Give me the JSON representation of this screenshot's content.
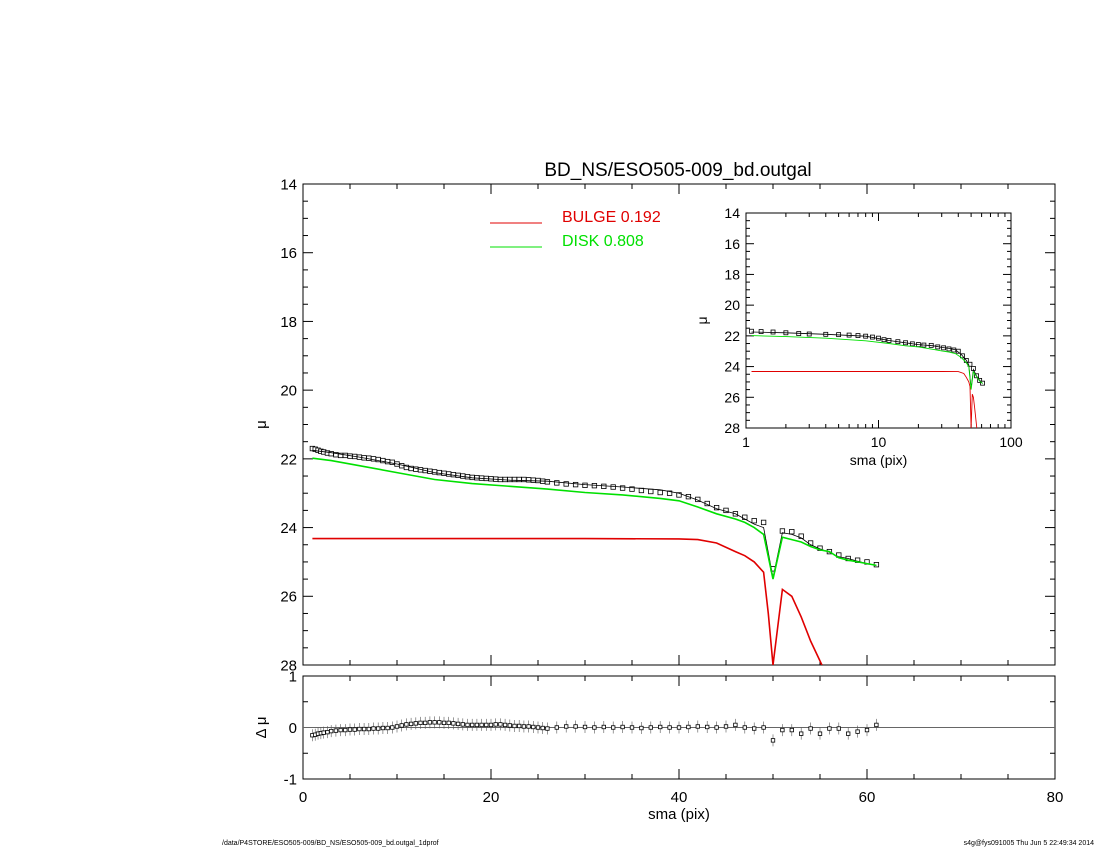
{
  "chart_data": [
    {
      "type": "line",
      "panel": "main",
      "title": "BD_NS/ESO505-009_bd.outgal",
      "xlabel": "",
      "ylabel": "μ",
      "xlim": [
        0,
        80
      ],
      "ylim": [
        28,
        14
      ],
      "y_inverted": true,
      "xticks": [
        0,
        20,
        40,
        60,
        80
      ],
      "yticks": [
        14,
        16,
        18,
        20,
        22,
        24,
        26,
        28
      ],
      "legend": [
        {
          "name": "BULGE",
          "value": "0.192",
          "color": "#e00000"
        },
        {
          "name": "DISK",
          "value": "0.808",
          "color": "#00e000"
        }
      ],
      "series": [
        {
          "name": "data",
          "style": "squares",
          "color": "#000000",
          "x": [
            1.0,
            1.3,
            1.6,
            1.9,
            2.2,
            2.6,
            3,
            3.5,
            4,
            4.5,
            5,
            5.5,
            6,
            6.5,
            7,
            7.5,
            8,
            8.5,
            9,
            9.5,
            10,
            10.5,
            11,
            11.5,
            12,
            12.5,
            13,
            13.5,
            14,
            14.5,
            15,
            15.5,
            16,
            16.5,
            17,
            17.5,
            18,
            18.5,
            19,
            19.5,
            20,
            20.5,
            21,
            21.5,
            22,
            22.5,
            23,
            23.5,
            24,
            24.5,
            25,
            25.5,
            26,
            27,
            28,
            29,
            30,
            31,
            32,
            33,
            34,
            35,
            36,
            37,
            38,
            39,
            40,
            41,
            42,
            43,
            44,
            45,
            46,
            47,
            48,
            49,
            50,
            51,
            52,
            53,
            54,
            55,
            56,
            57,
            58,
            59,
            60,
            61
          ],
          "y": [
            21.7,
            21.72,
            21.75,
            21.78,
            21.8,
            21.83,
            21.85,
            21.88,
            21.9,
            21.9,
            21.92,
            21.93,
            21.95,
            21.97,
            21.98,
            22.0,
            22.02,
            22.05,
            22.08,
            22.1,
            22.15,
            22.2,
            22.25,
            22.28,
            22.3,
            22.32,
            22.34,
            22.36,
            22.38,
            22.4,
            22.42,
            22.44,
            22.46,
            22.48,
            22.5,
            22.52,
            22.54,
            22.55,
            22.56,
            22.57,
            22.58,
            22.59,
            22.6,
            22.6,
            22.6,
            22.6,
            22.6,
            22.6,
            22.61,
            22.62,
            22.63,
            22.65,
            22.67,
            22.7,
            22.73,
            22.75,
            22.77,
            22.78,
            22.8,
            22.82,
            22.85,
            22.88,
            22.92,
            22.95,
            22.98,
            23.0,
            23.05,
            23.1,
            23.18,
            23.3,
            23.42,
            23.5,
            23.6,
            23.7,
            23.8,
            23.85,
            25.2,
            24.1,
            24.12,
            24.25,
            24.45,
            24.6,
            24.7,
            24.8,
            24.9,
            24.95,
            25.0,
            25.08
          ]
        },
        {
          "name": "model",
          "style": "line",
          "color": "#000000",
          "x": [
            1,
            3,
            6,
            10,
            14,
            18,
            22,
            26,
            30,
            34,
            38,
            40,
            42,
            44,
            46,
            47,
            48,
            49,
            50,
            51,
            52,
            53,
            54,
            55,
            56,
            57,
            58,
            59,
            60,
            61
          ],
          "y": [
            21.75,
            21.82,
            21.95,
            22.15,
            22.4,
            22.55,
            22.62,
            22.65,
            22.75,
            22.82,
            22.9,
            23.0,
            23.2,
            23.45,
            23.6,
            23.75,
            23.9,
            24.0,
            25.45,
            24.15,
            24.2,
            24.3,
            24.5,
            24.62,
            24.72,
            24.85,
            24.9,
            24.98,
            25.05,
            25.1
          ]
        },
        {
          "name": "BULGE",
          "style": "line",
          "color": "#e00000",
          "x": [
            1,
            10,
            20,
            30,
            40,
            42,
            44,
            46,
            47,
            48,
            49,
            49.5,
            50,
            50.5,
            51,
            52,
            53,
            54,
            55.2
          ],
          "y": [
            24.32,
            24.32,
            24.32,
            24.32,
            24.33,
            24.35,
            24.45,
            24.7,
            24.82,
            25.0,
            25.3,
            26.5,
            28.0,
            26.9,
            25.8,
            26.0,
            26.6,
            27.3,
            28.0
          ]
        },
        {
          "name": "DISK",
          "style": "line",
          "color": "#00e000",
          "x": [
            1,
            3,
            6,
            10,
            14,
            18,
            22,
            26,
            30,
            34,
            38,
            40,
            42,
            44,
            46,
            47,
            48,
            49,
            50,
            51,
            52,
            53,
            54,
            55,
            56,
            57,
            58,
            59,
            60,
            61
          ],
          "y": [
            21.98,
            22.05,
            22.2,
            22.4,
            22.6,
            22.72,
            22.8,
            22.88,
            22.98,
            23.05,
            23.15,
            23.22,
            23.4,
            23.6,
            23.75,
            23.85,
            24.0,
            24.2,
            25.5,
            24.28,
            24.35,
            24.42,
            24.55,
            24.65,
            24.7,
            24.88,
            24.95,
            25.0,
            25.05,
            25.1
          ]
        }
      ]
    },
    {
      "type": "scatter",
      "panel": "residual",
      "xlabel": "sma (pix)",
      "ylabel": "Δ μ",
      "xlim": [
        0,
        80
      ],
      "ylim": [
        -1,
        1
      ],
      "xticks": [
        0,
        20,
        40,
        60,
        80
      ],
      "yticks": [
        -1,
        0,
        1
      ],
      "zero_line": true,
      "series": [
        {
          "name": "residual",
          "style": "squares",
          "color": "#000000",
          "x": [
            1.0,
            1.3,
            1.6,
            1.9,
            2.2,
            2.6,
            3,
            3.5,
            4,
            4.5,
            5,
            5.5,
            6,
            6.5,
            7,
            7.5,
            8,
            8.5,
            9,
            9.5,
            10,
            10.5,
            11,
            11.5,
            12,
            12.5,
            13,
            13.5,
            14,
            14.5,
            15,
            15.5,
            16,
            16.5,
            17,
            17.5,
            18,
            18.5,
            19,
            19.5,
            20,
            20.5,
            21,
            21.5,
            22,
            22.5,
            23,
            23.5,
            24,
            24.5,
            25,
            25.5,
            26,
            27,
            28,
            29,
            30,
            31,
            32,
            33,
            34,
            35,
            36,
            37,
            38,
            39,
            40,
            41,
            42,
            43,
            44,
            45,
            46,
            47,
            48,
            49,
            50,
            51,
            52,
            53,
            54,
            55,
            56,
            57,
            58,
            59,
            60,
            61
          ],
          "y": [
            -0.15,
            -0.14,
            -0.12,
            -0.11,
            -0.1,
            -0.09,
            -0.07,
            -0.06,
            -0.05,
            -0.05,
            -0.04,
            -0.04,
            -0.03,
            -0.03,
            -0.03,
            -0.02,
            -0.02,
            -0.01,
            -0.01,
            0.0,
            0.02,
            0.04,
            0.06,
            0.07,
            0.08,
            0.09,
            0.09,
            0.1,
            0.1,
            0.1,
            0.09,
            0.09,
            0.08,
            0.07,
            0.06,
            0.05,
            0.05,
            0.05,
            0.05,
            0.05,
            0.05,
            0.06,
            0.06,
            0.05,
            0.04,
            0.03,
            0.03,
            0.02,
            0.02,
            0.01,
            0.0,
            -0.01,
            -0.02,
            0.0,
            0.02,
            0.02,
            0.01,
            0.0,
            0.01,
            0.0,
            0.01,
            0.0,
            -0.01,
            0.0,
            0.01,
            0.0,
            0.0,
            0.01,
            0.02,
            0.01,
            0.0,
            0.02,
            0.05,
            0.0,
            -0.02,
            0.0,
            -0.25,
            -0.05,
            -0.05,
            -0.12,
            -0.02,
            -0.12,
            -0.02,
            -0.02,
            -0.12,
            -0.08,
            -0.05,
            0.05
          ]
        }
      ]
    },
    {
      "type": "line",
      "panel": "inset",
      "xlabel": "sma (pix)",
      "ylabel": "μ",
      "x_scale": "log",
      "xlim": [
        1,
        100
      ],
      "ylim": [
        28,
        14
      ],
      "y_inverted": true,
      "xticks": [
        1,
        10,
        100
      ],
      "yticks": [
        14,
        16,
        18,
        20,
        22,
        24,
        26,
        28
      ],
      "series": [
        {
          "name": "data",
          "style": "squares",
          "color": "#000000",
          "x": [
            1.1,
            1.3,
            1.6,
            2,
            2.5,
            3,
            4,
            5,
            6,
            7,
            8,
            9,
            10,
            11,
            12,
            14,
            16,
            18,
            20,
            22,
            25,
            28,
            31,
            34,
            37,
            40,
            43,
            46,
            49,
            52,
            55,
            58,
            61
          ],
          "y": [
            21.7,
            21.72,
            21.75,
            21.8,
            21.85,
            21.88,
            21.9,
            21.92,
            21.95,
            21.98,
            22.02,
            22.08,
            22.15,
            22.25,
            22.3,
            22.38,
            22.45,
            22.52,
            22.57,
            22.6,
            22.62,
            22.72,
            22.78,
            22.85,
            22.92,
            23.0,
            23.3,
            23.6,
            23.85,
            24.12,
            24.6,
            24.9,
            25.08
          ]
        },
        {
          "name": "model",
          "style": "line",
          "color": "#000000",
          "x": [
            1.1,
            2,
            4,
            8,
            12,
            16,
            20,
            26,
            30,
            34,
            38,
            42,
            46,
            48,
            50,
            52,
            55,
            58,
            61
          ],
          "y": [
            21.75,
            21.8,
            21.9,
            22.02,
            22.3,
            22.45,
            22.57,
            22.65,
            22.75,
            22.82,
            22.9,
            23.2,
            23.6,
            23.9,
            25.4,
            24.2,
            24.62,
            24.9,
            25.1
          ]
        },
        {
          "name": "BULGE",
          "style": "line",
          "color": "#e00000",
          "x": [
            1.1,
            10,
            30,
            40,
            44,
            46,
            48,
            49,
            50,
            51,
            52,
            53,
            55.2
          ],
          "y": [
            24.32,
            24.32,
            24.32,
            24.33,
            24.45,
            24.7,
            25.0,
            25.3,
            28.0,
            25.8,
            26.0,
            26.6,
            28.0
          ]
        },
        {
          "name": "DISK",
          "style": "line",
          "color": "#00e000",
          "x": [
            1.1,
            2,
            4,
            8,
            12,
            16,
            20,
            26,
            30,
            34,
            38,
            42,
            46,
            48,
            50,
            52,
            55,
            58,
            61
          ],
          "y": [
            21.98,
            22.05,
            22.15,
            22.32,
            22.5,
            22.65,
            22.72,
            22.88,
            22.98,
            23.05,
            23.15,
            23.4,
            23.75,
            24.0,
            25.5,
            24.35,
            24.65,
            24.95,
            25.1
          ]
        }
      ]
    }
  ],
  "footer": {
    "left": "/data/P4STORE/ESO505-009/BD_NS/ESO505-009_bd.outgal_1dprof",
    "right": "s4g@fys091005  Thu Jun  5 22:49:34 2014"
  }
}
